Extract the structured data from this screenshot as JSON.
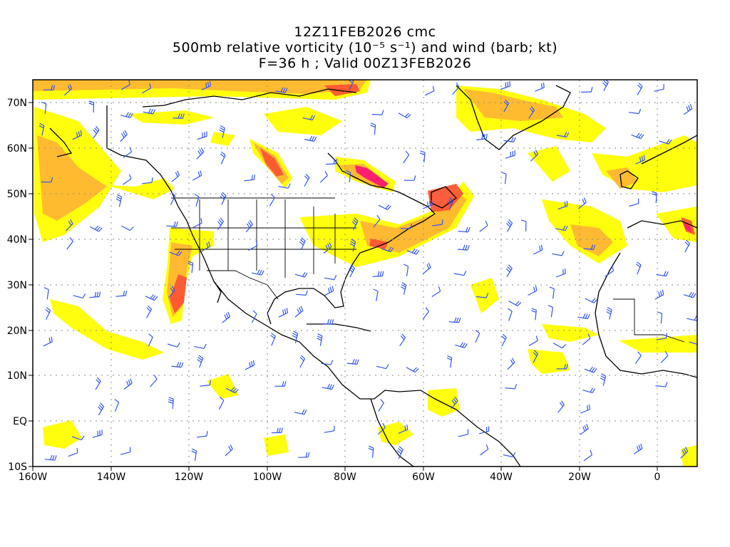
{
  "title": {
    "line1": "12Z11FEB2026 cmc",
    "line2": "500mb relative vorticity (10⁻⁵ s⁻¹) and wind (barb; kt)",
    "line3": "F=36 h ; Valid 00Z13FEB2026"
  },
  "map": {
    "projection": "cylindrical",
    "lon_range": [
      -160,
      10
    ],
    "lat_range": [
      -10,
      75
    ],
    "lat_ticks": [
      "70N",
      "60N",
      "50N",
      "40N",
      "30N",
      "20N",
      "10N",
      "EQ",
      "10S"
    ],
    "lon_ticks": [
      "160W",
      "140W",
      "120W",
      "100W",
      "80W",
      "60W",
      "40W",
      "20W",
      "0"
    ],
    "grid": "dotted",
    "fill_colors": [
      "#ffff00",
      "#ffcc33",
      "#ff9933",
      "#ff5533",
      "#ff2266"
    ],
    "barb_color": "#3355ee",
    "coast_color": "#000000"
  }
}
